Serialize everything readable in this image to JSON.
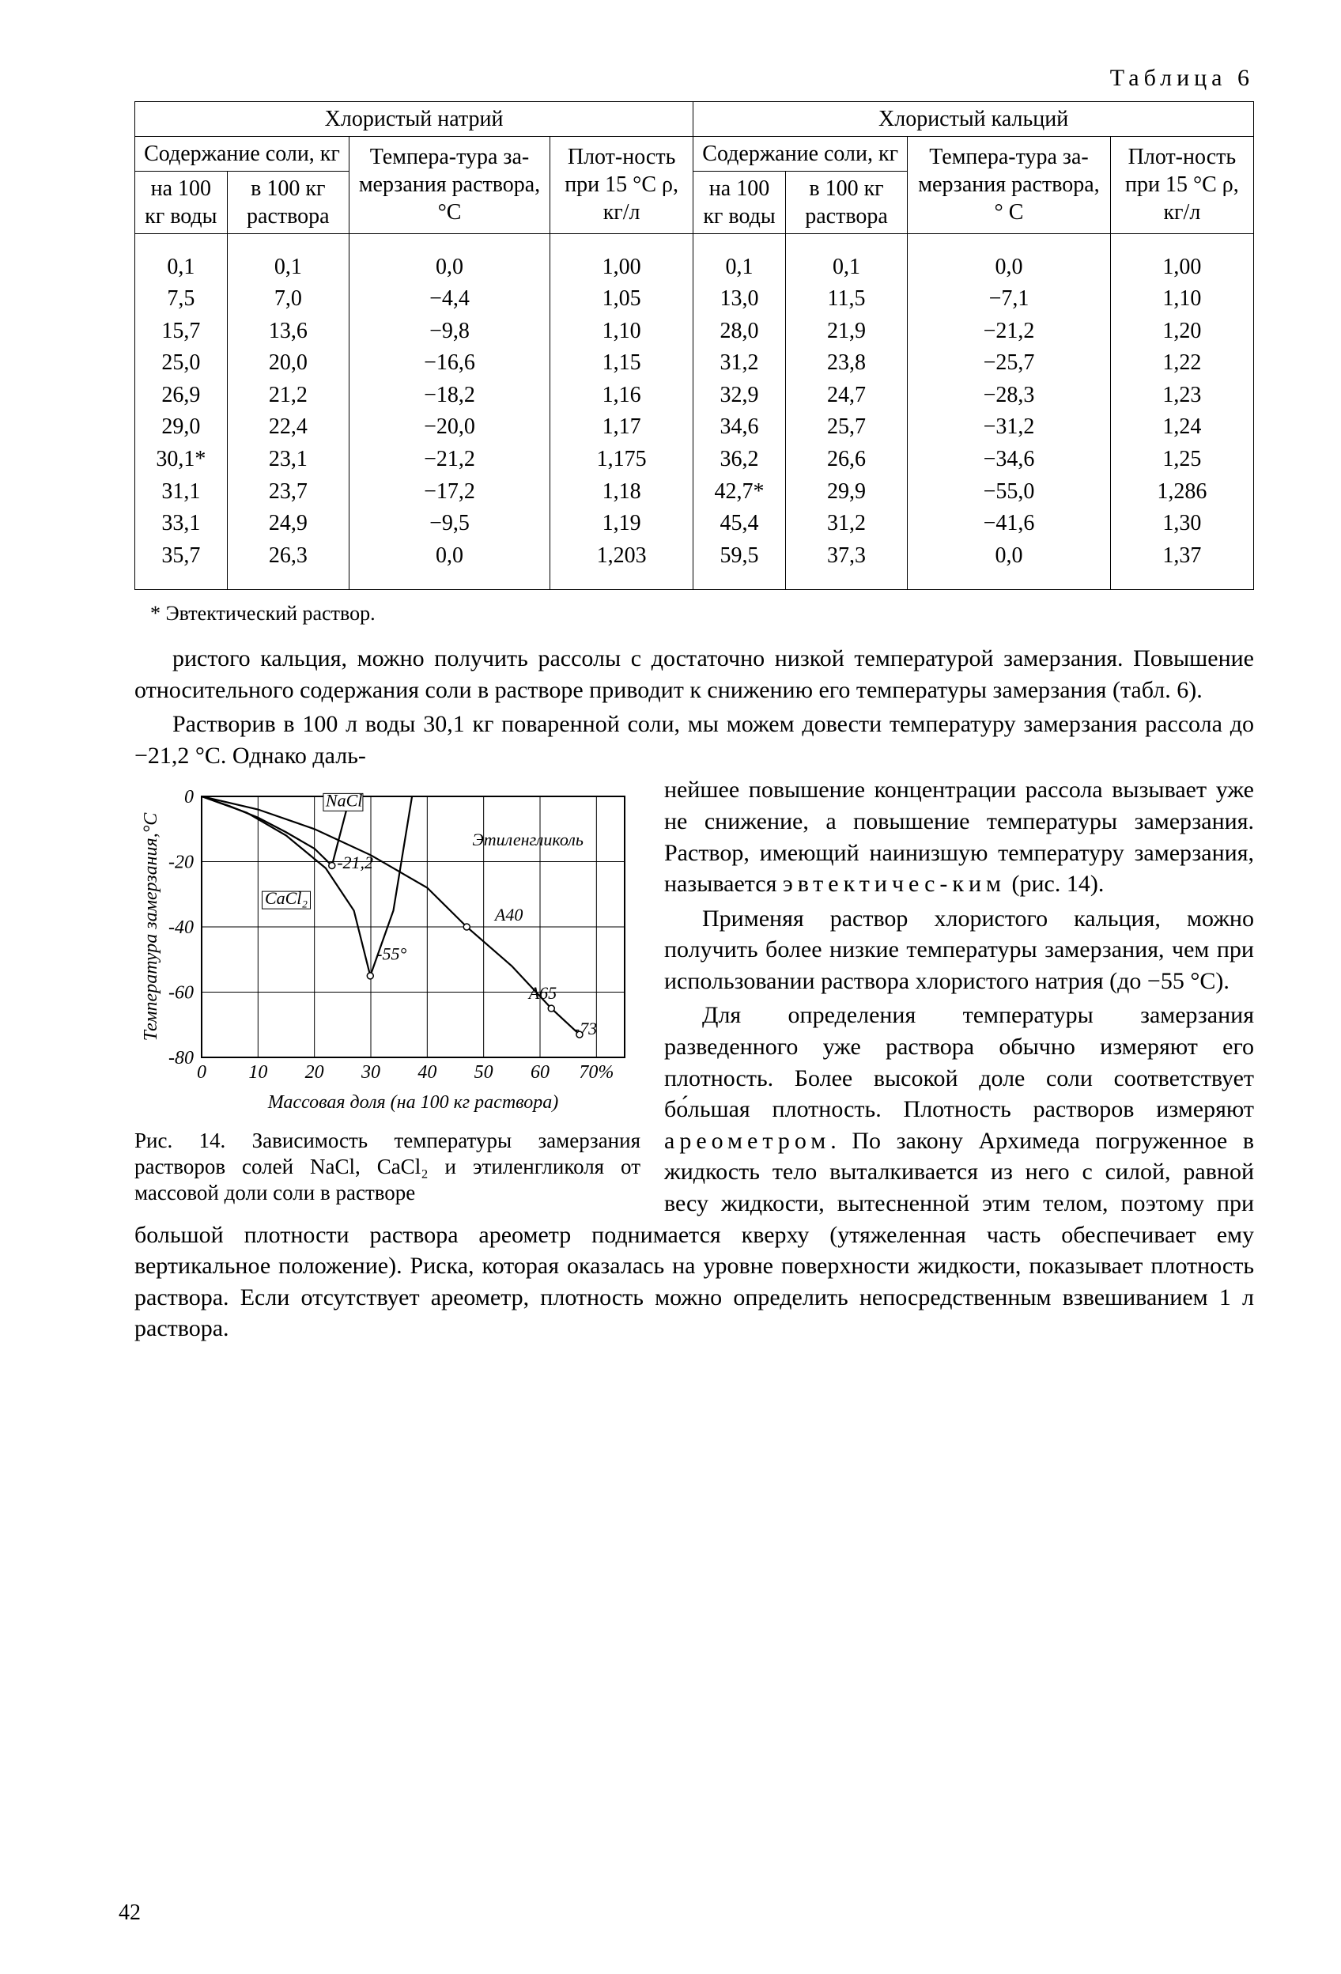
{
  "page_number": "42",
  "table": {
    "caption": "Таблица 6",
    "group_left": "Хлористый натрий",
    "group_right": "Хлористый кальций",
    "sub1": "Содержание соли, кг",
    "sub2": "Темпера-тура за-мерзания раствора, °С",
    "sub3": "Плот-ность при 15 °С ρ, кг/л",
    "sub4": "Содержание соли, кг",
    "sub5": "Темпера-тура за-мерзания раствора, ° С",
    "sub6": "Плот-ность при 15 °С ρ, кг/л",
    "col_a": "на 100 кг воды",
    "col_b": "в 100 кг раствора",
    "col_c": "на 100 кг воды",
    "col_d": "в 100 кг раствора",
    "rows": [
      [
        "0,1",
        "0,1",
        "0,0",
        "1,00",
        "0,1",
        "0,1",
        "0,0",
        "1,00"
      ],
      [
        "7,5",
        "7,0",
        "−4,4",
        "1,05",
        "13,0",
        "11,5",
        "−7,1",
        "1,10"
      ],
      [
        "15,7",
        "13,6",
        "−9,8",
        "1,10",
        "28,0",
        "21,9",
        "−21,2",
        "1,20"
      ],
      [
        "25,0",
        "20,0",
        "−16,6",
        "1,15",
        "31,2",
        "23,8",
        "−25,7",
        "1,22"
      ],
      [
        "26,9",
        "21,2",
        "−18,2",
        "1,16",
        "32,9",
        "24,7",
        "−28,3",
        "1,23"
      ],
      [
        "29,0",
        "22,4",
        "−20,0",
        "1,17",
        "34,6",
        "25,7",
        "−31,2",
        "1,24"
      ],
      [
        "30,1*",
        "23,1",
        "−21,2",
        "1,175",
        "36,2",
        "26,6",
        "−34,6",
        "1,25"
      ],
      [
        "31,1",
        "23,7",
        "−17,2",
        "1,18",
        "42,7*",
        "29,9",
        "−55,0",
        "1,286"
      ],
      [
        "33,1",
        "24,9",
        "−9,5",
        "1,19",
        "45,4",
        "31,2",
        "−41,6",
        "1,30"
      ],
      [
        "35,7",
        "26,3",
        "0,0",
        "1,203",
        "59,5",
        "37,3",
        "0,0",
        "1,37"
      ]
    ]
  },
  "footnote": "* Эвтектический раствор.",
  "paragraphs": {
    "p1": "ристого кальция, можно получить рассолы с достаточно низкой температурой замерзания. Повышение относительного содержания соли в растворе приводит к снижению его температуры замерзания (табл. 6).",
    "p2_a": "Растворив в 100 л воды 30,1 кг поваренной соли, мы можем довести температуру замерзания рассола до −21,2 °С. Однако даль-",
    "p2_b": "нейшее повышение концентрации рассола вызывает уже не снижение, а повышение температуры замерзания. Раствор, имеющий наинизшую температуру замерзания, называется ",
    "p2_c": "эвтектичес-ким",
    "p2_d": " (рис. 14).",
    "p3": "Применяя раствор хлористого кальция, можно получить более низкие температуры замерзания, чем при использовании раствора хлористого натрия (до −55 °С).",
    "p4_a": "Для определения температуры замерзания разведенного уже раствора обычно измеряют его плотность. Более высокой доле соли соответствует бо́льшая плотность. Плотность растворов измеряют ",
    "p4_b": "ареометром",
    "p4_c": ". По закону Архимеда погруженное в жидкость тело выталкивается из него с силой, равной весу жидкости, вытесненной этим телом, поэтому при большой плотности раствора ареометр поднимается кверху (утяжеленная часть обеспечивает ему вертикальное положение). Риска, которая оказалась на уровне поверхности жидкости, показывает плотность раствора. Если отсутствует ареометр, плотность можно определить непосредственным взвешиванием 1 л раствора."
  },
  "figure": {
    "caption": "Рис. 14. Зависимость температуры замерзания растворов солей NaCl, CaCl₂ и этиленгликоля от массовой доли соли в растворе",
    "xlabel": "Массовая доля (на 100 кг раствора)",
    "ylabel": "Температура замерзания,°С",
    "x_ticks": [
      "0",
      "10",
      "20",
      "30",
      "40",
      "50",
      "60",
      "70%"
    ],
    "y_ticks": [
      "0",
      "-20",
      "-40",
      "-60",
      "-80"
    ],
    "xlim": [
      0,
      75
    ],
    "ylim": [
      -80,
      0
    ],
    "labels": {
      "nacl": "NaCl",
      "cacl2": "CaCl₂",
      "glycol": "Этиленгликоль",
      "p_212": "-21,2",
      "p_55": "-55°",
      "p_A40": "А40",
      "p_A65": "А65",
      "p_m73": "-73"
    },
    "grid_color": "#000000",
    "background_color": "#ffffff",
    "line_color": "#000000",
    "line_width": 2.2,
    "series": {
      "NaCl": [
        [
          0,
          0
        ],
        [
          5,
          -3
        ],
        [
          10,
          -6.5
        ],
        [
          15,
          -11
        ],
        [
          20,
          -16
        ],
        [
          23.1,
          -21.2
        ],
        [
          26.3,
          0
        ]
      ],
      "CaCl2": [
        [
          0,
          0
        ],
        [
          8,
          -5
        ],
        [
          15,
          -12
        ],
        [
          22,
          -22
        ],
        [
          27,
          -35
        ],
        [
          29.9,
          -55
        ],
        [
          34,
          -35
        ],
        [
          37.3,
          0
        ]
      ],
      "glycol": [
        [
          0,
          0
        ],
        [
          10,
          -4
        ],
        [
          20,
          -10
        ],
        [
          30,
          -18
        ],
        [
          40,
          -28
        ],
        [
          47,
          -40
        ],
        [
          55,
          -52
        ],
        [
          62,
          -65
        ],
        [
          67,
          -73
        ]
      ]
    }
  }
}
